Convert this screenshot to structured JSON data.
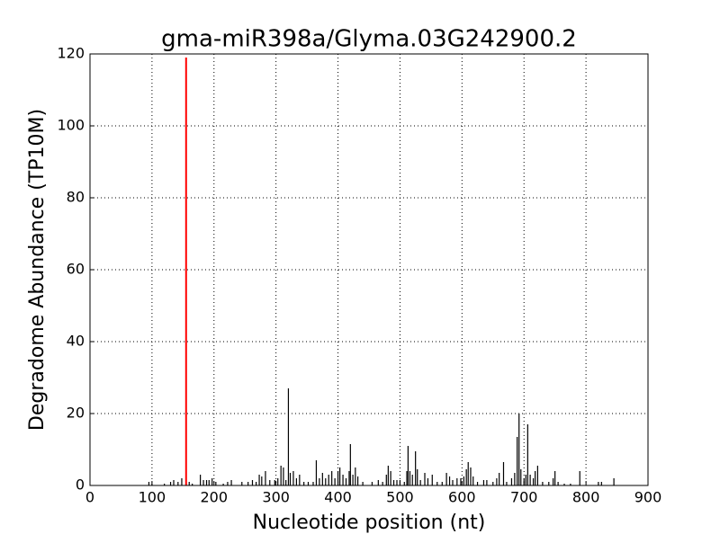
{
  "chart_data": {
    "type": "spike",
    "title": "gma-miR398a/Glyma.03G242900.2",
    "x_label": "Nucleotide position (nt)",
    "y_label": "Degradome Abundance (TP10M)",
    "xlim": [
      0,
      900
    ],
    "xticks": [
      0,
      100,
      200,
      300,
      400,
      500,
      600,
      700,
      800,
      900
    ],
    "ylim": [
      0,
      120
    ],
    "yticks": [
      0,
      20,
      40,
      60,
      80,
      100,
      120
    ],
    "grid": true,
    "series": [
      {
        "color": "#000000",
        "x": [
          95,
          100,
          120,
          130,
          135,
          142,
          148,
          160,
          165,
          178,
          183,
          188,
          192,
          197,
          203,
          215,
          222,
          228,
          245,
          255,
          262,
          268,
          273,
          277,
          283,
          290,
          298,
          303,
          308,
          312,
          316,
          320,
          323,
          328,
          333,
          338,
          345,
          352,
          360,
          365,
          370,
          375,
          380,
          385,
          390,
          395,
          400,
          403,
          408,
          413,
          418,
          420,
          424,
          428,
          432,
          440,
          455,
          465,
          472,
          478,
          481,
          485,
          490,
          495,
          500,
          507,
          511,
          513,
          516,
          520,
          525,
          528,
          533,
          540,
          545,
          552,
          560,
          568,
          575,
          580,
          585,
          592,
          598,
          603,
          607,
          610,
          614,
          618,
          625,
          635,
          640,
          650,
          656,
          660,
          667,
          672,
          680,
          685,
          689,
          692,
          695,
          700,
          703,
          706,
          710,
          715,
          718,
          722,
          730,
          740,
          747,
          750,
          755,
          765,
          775,
          790,
          820,
          825,
          845
        ],
        "values": [
          1,
          0.5,
          0.5,
          1,
          1.5,
          1,
          2,
          1,
          0.5,
          3,
          1.5,
          1.5,
          1.5,
          2,
          1,
          0.5,
          1,
          1.5,
          1,
          1,
          1.5,
          1,
          3,
          2.5,
          4,
          1.5,
          1.5,
          2,
          5.5,
          5,
          1.5,
          27,
          3.5,
          4,
          2,
          3,
          1,
          1,
          1,
          7,
          2,
          3.5,
          2,
          3,
          4,
          2,
          4,
          5,
          3,
          2,
          4,
          11.5,
          3,
          5,
          2.5,
          1,
          1,
          1.5,
          1,
          3,
          5.5,
          4,
          1.5,
          1.5,
          1.5,
          1,
          4,
          11,
          4,
          3,
          9.5,
          4.5,
          1.5,
          3.5,
          2,
          3,
          1,
          1,
          3.5,
          2.5,
          1.5,
          2,
          2,
          2.5,
          4.5,
          6.5,
          5,
          2.5,
          1,
          1.5,
          1.5,
          1,
          2,
          3.5,
          6.5,
          1,
          2,
          3.5,
          13.5,
          20,
          4.5,
          2,
          3,
          17,
          3,
          2,
          4,
          5.5,
          1,
          1,
          2,
          4,
          1,
          0.5,
          0.5,
          4,
          1,
          1,
          2
        ]
      },
      {
        "color": "#ff0000",
        "x": [
          155
        ],
        "values": [
          119
        ]
      }
    ]
  }
}
